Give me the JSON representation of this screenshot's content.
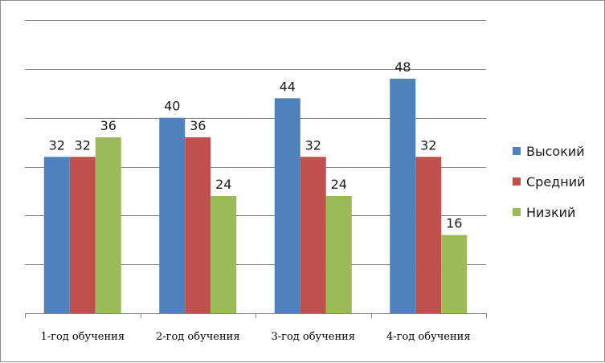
{
  "chart_data": {
    "type": "bar",
    "title": "",
    "xlabel": "",
    "ylabel": "",
    "categories": [
      "1-год обучения",
      "2-год обучения",
      "3-год обучения",
      "4-год обучения"
    ],
    "series": [
      {
        "name": "Высокий",
        "color": "#4f81bd",
        "values": [
          32,
          40,
          44,
          48
        ]
      },
      {
        "name": "Средний",
        "color": "#c0504d",
        "values": [
          32,
          36,
          32,
          32
        ]
      },
      {
        "name": "Низкий",
        "color": "#9bbb59",
        "values": [
          36,
          24,
          24,
          16
        ]
      }
    ],
    "ylim": [
      0,
      60
    ],
    "ytick_step": 10,
    "y_tick_labels_visible": false,
    "grid": true,
    "data_labels": true,
    "legend_position": "right"
  }
}
